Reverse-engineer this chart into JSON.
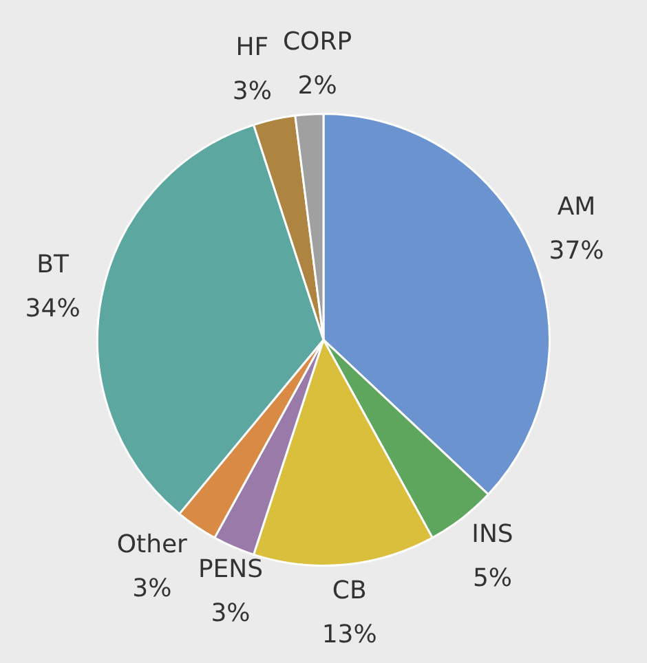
{
  "chart_data": {
    "type": "pie",
    "categories": [
      "AM",
      "INS",
      "CB",
      "PENS",
      "Other",
      "BT",
      "HF",
      "CORP"
    ],
    "values": [
      37,
      5,
      13,
      3,
      3,
      34,
      3,
      2
    ],
    "value_labels": [
      "37%",
      "5%",
      "13%",
      "3%",
      "3%",
      "34%",
      "3%",
      "2%"
    ],
    "colors": [
      "#6a93d0",
      "#5ea65e",
      "#d9bf3c",
      "#9a7aa8",
      "#d98a45",
      "#5ca8a0",
      "#ad8540",
      "#a0a0a0"
    ],
    "legend": false
  }
}
